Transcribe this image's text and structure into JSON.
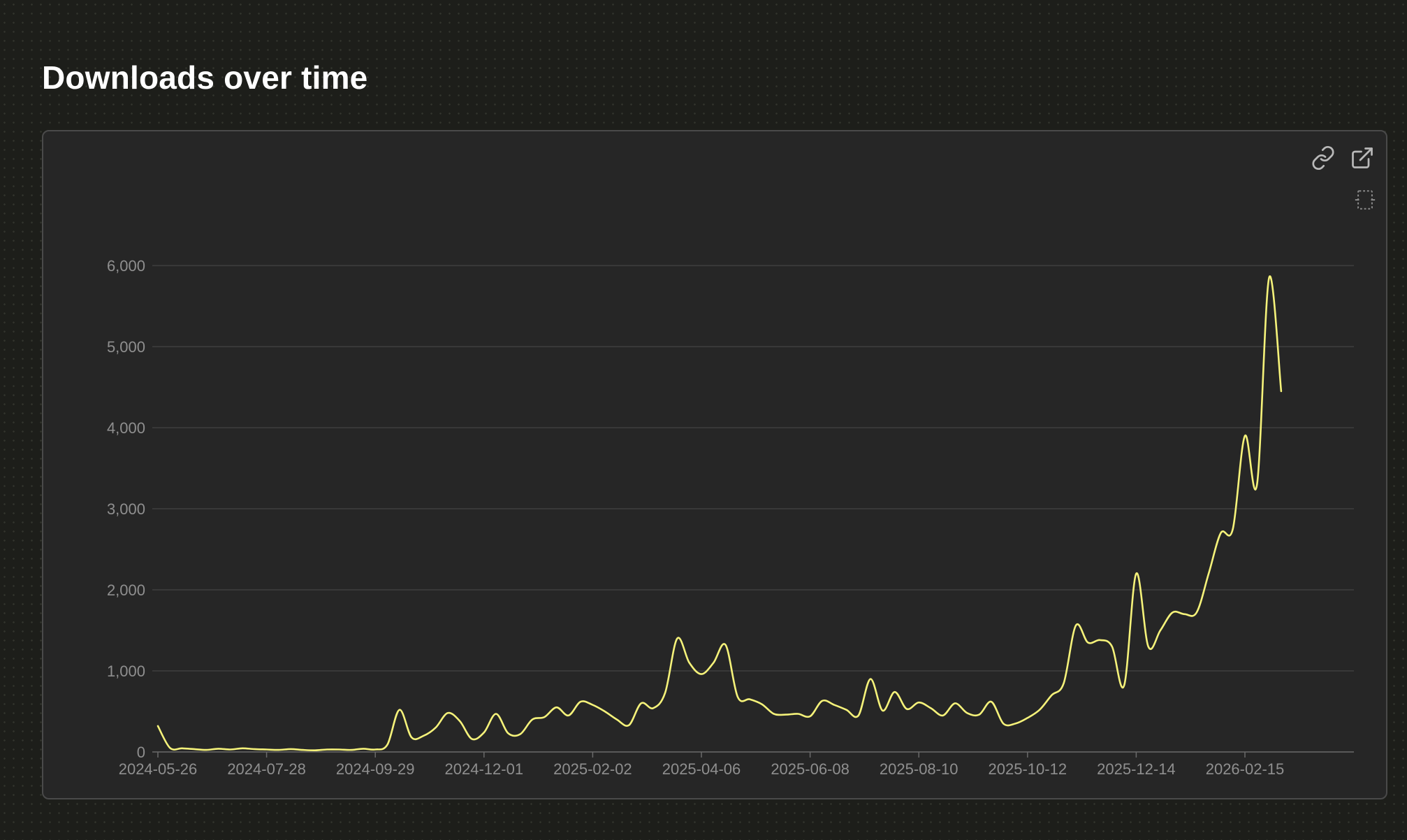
{
  "page": {
    "title": "Downloads over time"
  },
  "toolbar": {
    "icons": [
      "link-icon",
      "open-external-icon",
      "fullscreen-icon"
    ]
  },
  "colors": {
    "line": "#f5f27a",
    "grid": "#444444",
    "axis_text": "#8f8f8f",
    "card_bg": "#262626"
  },
  "chart_data": {
    "type": "line",
    "title": "",
    "xlabel": "",
    "ylabel": "",
    "ylim": [
      0,
      6000
    ],
    "yticks": [
      0,
      1000,
      2000,
      3000,
      4000,
      5000,
      6000
    ],
    "ytick_labels": [
      "0",
      "1,000",
      "2,000",
      "3,000",
      "4,000",
      "5,000",
      "6,000"
    ],
    "xticks": [
      "2024-05-26",
      "2024-07-28",
      "2024-09-29",
      "2024-12-01",
      "2025-02-02",
      "2025-04-06",
      "2025-06-08",
      "2025-08-10",
      "2025-10-12",
      "2025-12-14",
      "2026-02-15"
    ],
    "grid": true,
    "legend": "none",
    "series": [
      {
        "values": [
          [
            "2024-05-26",
            320
          ],
          [
            "2024-06-02",
            50
          ],
          [
            "2024-06-09",
            45
          ],
          [
            "2024-06-16",
            35
          ],
          [
            "2024-06-23",
            25
          ],
          [
            "2024-06-30",
            40
          ],
          [
            "2024-07-07",
            30
          ],
          [
            "2024-07-14",
            45
          ],
          [
            "2024-07-21",
            35
          ],
          [
            "2024-07-28",
            30
          ],
          [
            "2024-08-04",
            25
          ],
          [
            "2024-08-11",
            35
          ],
          [
            "2024-08-18",
            25
          ],
          [
            "2024-08-25",
            20
          ],
          [
            "2024-09-01",
            30
          ],
          [
            "2024-09-08",
            30
          ],
          [
            "2024-09-15",
            25
          ],
          [
            "2024-09-22",
            40
          ],
          [
            "2024-09-29",
            30
          ],
          [
            "2024-10-06",
            90
          ],
          [
            "2024-10-13",
            520
          ],
          [
            "2024-10-20",
            180
          ],
          [
            "2024-10-27",
            200
          ],
          [
            "2024-11-03",
            300
          ],
          [
            "2024-11-10",
            480
          ],
          [
            "2024-11-17",
            380
          ],
          [
            "2024-11-24",
            160
          ],
          [
            "2024-12-01",
            240
          ],
          [
            "2024-12-08",
            470
          ],
          [
            "2024-12-15",
            230
          ],
          [
            "2024-12-22",
            220
          ],
          [
            "2024-12-29",
            400
          ],
          [
            "2025-01-05",
            430
          ],
          [
            "2025-01-12",
            550
          ],
          [
            "2025-01-19",
            450
          ],
          [
            "2025-01-26",
            620
          ],
          [
            "2025-02-02",
            580
          ],
          [
            "2025-02-09",
            500
          ],
          [
            "2025-02-16",
            400
          ],
          [
            "2025-02-23",
            330
          ],
          [
            "2025-03-02",
            600
          ],
          [
            "2025-03-09",
            540
          ],
          [
            "2025-03-16",
            730
          ],
          [
            "2025-03-23",
            1400
          ],
          [
            "2025-03-30",
            1100
          ],
          [
            "2025-04-06",
            960
          ],
          [
            "2025-04-13",
            1100
          ],
          [
            "2025-04-20",
            1320
          ],
          [
            "2025-04-27",
            680
          ],
          [
            "2025-05-04",
            650
          ],
          [
            "2025-05-11",
            590
          ],
          [
            "2025-05-18",
            470
          ],
          [
            "2025-05-25",
            460
          ],
          [
            "2025-06-01",
            470
          ],
          [
            "2025-06-08",
            440
          ],
          [
            "2025-06-15",
            630
          ],
          [
            "2025-06-22",
            580
          ],
          [
            "2025-06-29",
            520
          ],
          [
            "2025-07-06",
            450
          ],
          [
            "2025-07-13",
            900
          ],
          [
            "2025-07-20",
            510
          ],
          [
            "2025-07-27",
            740
          ],
          [
            "2025-08-03",
            530
          ],
          [
            "2025-08-10",
            610
          ],
          [
            "2025-08-17",
            540
          ],
          [
            "2025-08-24",
            450
          ],
          [
            "2025-08-31",
            600
          ],
          [
            "2025-09-07",
            480
          ],
          [
            "2025-09-14",
            460
          ],
          [
            "2025-09-21",
            620
          ],
          [
            "2025-09-28",
            350
          ],
          [
            "2025-10-05",
            350
          ],
          [
            "2025-10-12",
            420
          ],
          [
            "2025-10-19",
            520
          ],
          [
            "2025-10-26",
            700
          ],
          [
            "2025-11-02",
            850
          ],
          [
            "2025-11-09",
            1560
          ],
          [
            "2025-11-16",
            1350
          ],
          [
            "2025-11-23",
            1380
          ],
          [
            "2025-11-30",
            1300
          ],
          [
            "2025-12-07",
            820
          ],
          [
            "2025-12-14",
            2200
          ],
          [
            "2025-12-21",
            1300
          ],
          [
            "2025-12-28",
            1500
          ],
          [
            "2026-01-04",
            1720
          ],
          [
            "2026-01-11",
            1700
          ],
          [
            "2026-01-18",
            1720
          ],
          [
            "2026-01-25",
            2200
          ],
          [
            "2026-02-01",
            2700
          ],
          [
            "2026-02-08",
            2750
          ],
          [
            "2026-02-15",
            3900
          ],
          [
            "2026-02-22",
            3300
          ],
          [
            "2026-03-01",
            5850
          ],
          [
            "2026-03-08",
            4450
          ]
        ]
      }
    ]
  }
}
